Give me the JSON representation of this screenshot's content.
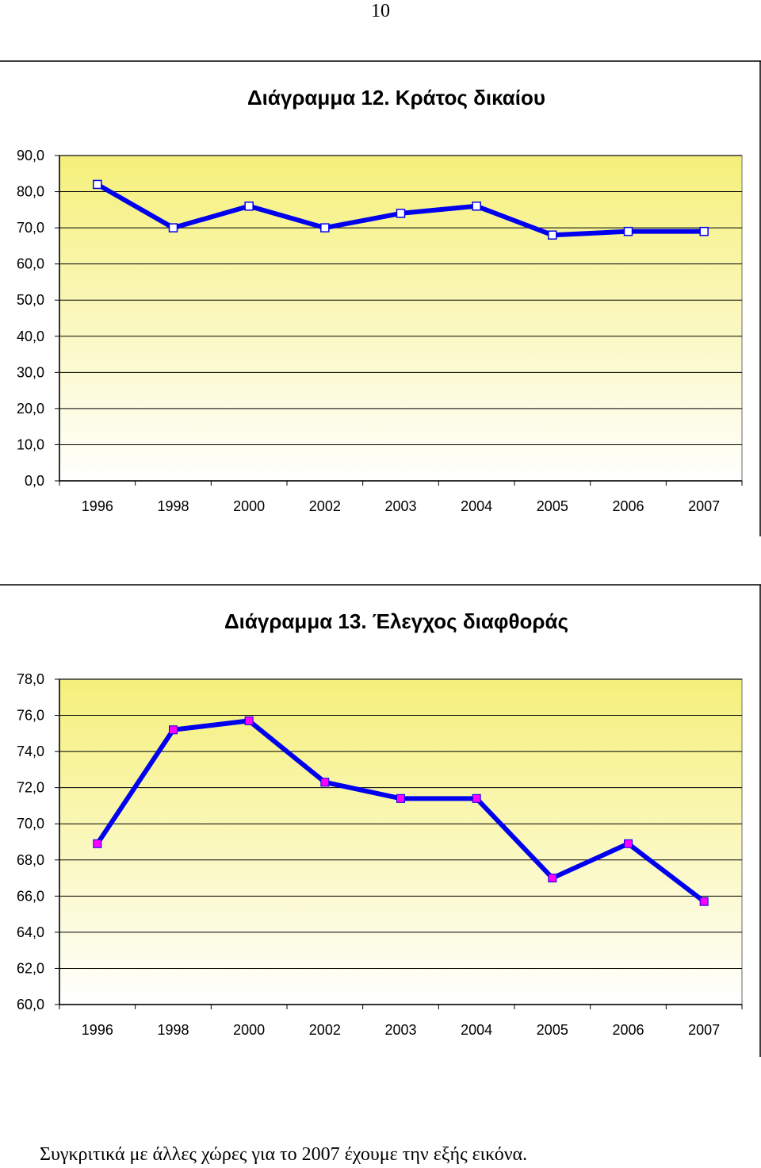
{
  "page_number": "10",
  "chart_data": [
    {
      "type": "line",
      "title": "Διάγραμμα 12. Κράτος δικαίου",
      "categories": [
        "1996",
        "1998",
        "2000",
        "2002",
        "2003",
        "2004",
        "2005",
        "2006",
        "2007"
      ],
      "y_tick_labels": [
        "0,0",
        "10,0",
        "20,0",
        "30,0",
        "40,0",
        "50,0",
        "60,0",
        "70,0",
        "80,0",
        "90,0"
      ],
      "ylim": [
        0,
        90
      ],
      "y_step": 10,
      "grid": true,
      "plot_background": "gradient yellow (#f5f07a) to white",
      "series": [
        {
          "values": [
            82,
            70,
            76,
            70,
            74,
            76,
            68,
            69,
            69
          ],
          "line_color": "#0000ee",
          "marker": "hollow-square",
          "marker_color": "#0000ee"
        }
      ]
    },
    {
      "type": "line",
      "title": "Διάγραμμα 13. Έλεγχος διαφθοράς",
      "categories": [
        "1996",
        "1998",
        "2000",
        "2002",
        "2003",
        "2004",
        "2005",
        "2006",
        "2007"
      ],
      "y_tick_labels": [
        "60,0",
        "62,0",
        "64,0",
        "66,0",
        "68,0",
        "70,0",
        "72,0",
        "74,0",
        "76,0",
        "78,0"
      ],
      "ylim": [
        60,
        78
      ],
      "y_step": 2,
      "grid": true,
      "plot_background": "gradient yellow (#f5f07a) to white",
      "series": [
        {
          "values": [
            68.9,
            75.2,
            75.7,
            72.3,
            71.4,
            71.4,
            67.0,
            68.9,
            65.7
          ],
          "line_color": "#0000ee",
          "marker": "filled-square",
          "marker_color": "#ff00ff"
        }
      ]
    }
  ],
  "caption": "Συγκριτικά με άλλες χώρες για το 2007 έχουμε την εξής εικόνα."
}
